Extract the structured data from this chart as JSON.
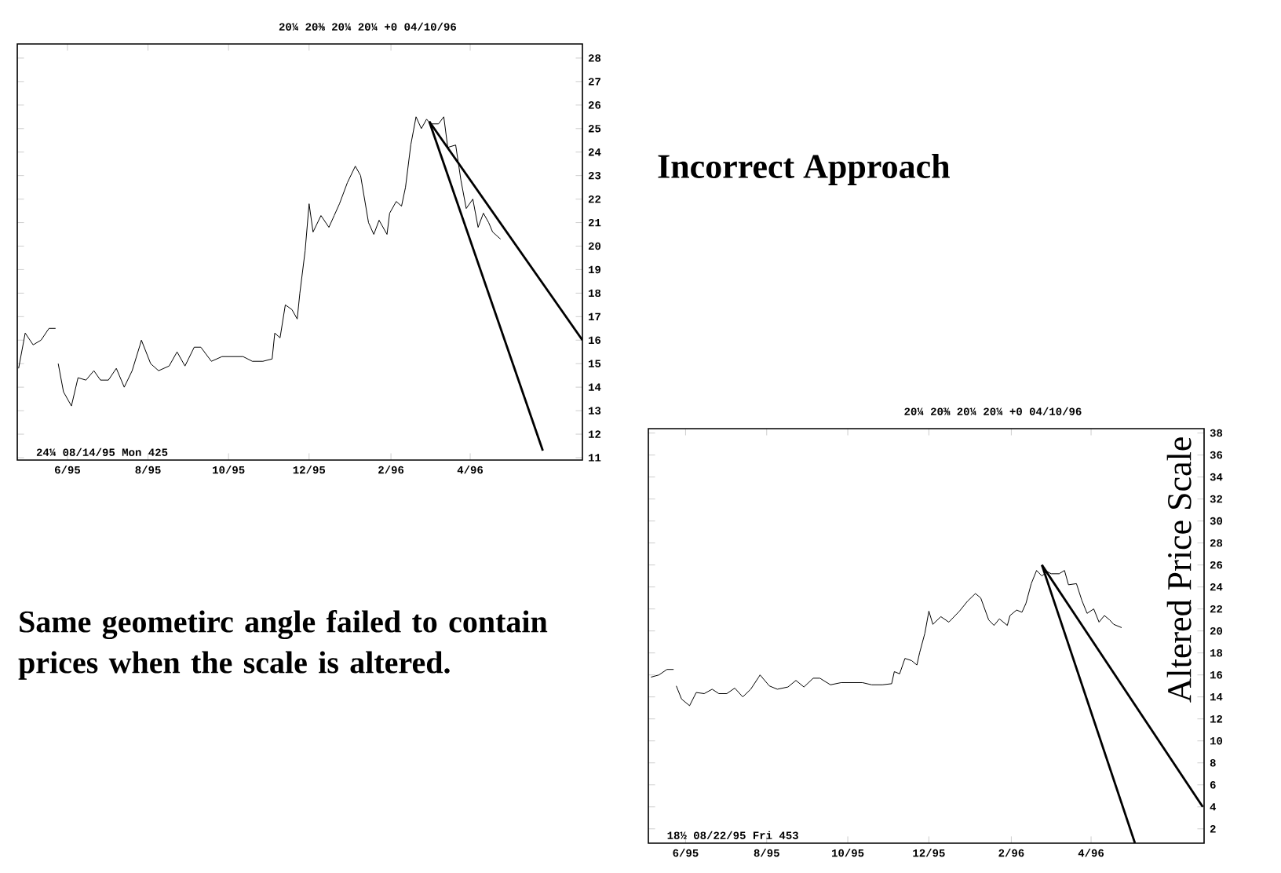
{
  "chart_data": [
    {
      "type": "line",
      "subtitle": "20¼   20⅜   20¼   20¼   +0   04/10/96",
      "xlim": [
        "1995-04-24",
        "1996-06-25"
      ],
      "ylim": [
        10.9,
        28.6
      ],
      "xticks": [
        {
          "value": "1995-06",
          "label": "6/95"
        },
        {
          "value": "1995-08",
          "label": "8/95"
        },
        {
          "value": "1995-10",
          "label": "10/95"
        },
        {
          "value": "1995-12",
          "label": "12/95"
        },
        {
          "value": "1996-02",
          "label": "2/96"
        },
        {
          "value": "1996-04",
          "label": "4/96"
        }
      ],
      "yticks": [
        11,
        12,
        13,
        14,
        15,
        16,
        17,
        18,
        19,
        20,
        21,
        22,
        23,
        24,
        25,
        26,
        27,
        28
      ],
      "annotations": [
        "24¼ 08/14/95 Mon 425",
        "Incorrect Approach"
      ],
      "series": [
        {
          "color": "#000000",
          "x": [
            "1995-04-25",
            "1995-04-30",
            "1995-05-06",
            "1995-05-12",
            "1995-05-18",
            "1995-05-23",
            "1995-05-24",
            "1995-05-25",
            "1995-05-29",
            "1995-06-04",
            "1995-06-09",
            "1995-06-15",
            "1995-06-21",
            "1995-06-26",
            "1995-07-02",
            "1995-07-08",
            "1995-07-14",
            "1995-07-20",
            "1995-07-26",
            "1995-07-27",
            "1995-08-03",
            "1995-08-09",
            "1995-08-17",
            "1995-08-23",
            "1995-08-29",
            "1995-09-05",
            "1995-09-10",
            "1995-09-18",
            "1995-09-26",
            "1995-10-04",
            "1995-10-12",
            "1995-10-19",
            "1995-10-27",
            "1995-11-03",
            "1995-11-05",
            "1995-11-09",
            "1995-11-13",
            "1995-11-18",
            "1995-11-22",
            "1995-11-24",
            "1995-11-28",
            "1995-12-01",
            "1995-12-04",
            "1995-12-10",
            "1995-12-16",
            "1995-12-20",
            "1995-12-24",
            "1995-12-30",
            "1996-01-05",
            "1996-01-09",
            "1996-01-15",
            "1996-01-19",
            "1996-01-23",
            "1996-01-29",
            "1996-01-31",
            "1996-02-05",
            "1996-02-09",
            "1996-02-12",
            "1996-02-16",
            "1996-02-20",
            "1996-02-24",
            "1996-02-28",
            "1996-03-02",
            "1996-03-08",
            "1996-03-12",
            "1996-03-15",
            "1996-03-21",
            "1996-03-25",
            "1996-03-29",
            "1996-04-03",
            "1996-04-07",
            "1996-04-11",
            "1996-04-15",
            "1996-04-18",
            "1996-04-24"
          ],
          "values": [
            14.8,
            16.3,
            15.8,
            16,
            16.5,
            16.5,
            null,
            15,
            13.8,
            13.2,
            14.4,
            14.3,
            14.7,
            14.3,
            14.3,
            14.8,
            14,
            14.7,
            15.8,
            16,
            15,
            14.7,
            14.9,
            15.5,
            14.9,
            15.7,
            15.7,
            15.1,
            15.3,
            15.3,
            15.3,
            15.1,
            15.1,
            15.2,
            16.3,
            16.1,
            17.5,
            17.3,
            16.9,
            18,
            19.8,
            21.8,
            20.6,
            21.3,
            20.8,
            21.3,
            21.8,
            22.7,
            23.4,
            23,
            21,
            20.5,
            21.1,
            20.5,
            21.4,
            21.9,
            21.7,
            22.5,
            24.3,
            25.5,
            25,
            25.4,
            25.2,
            25.2,
            25.5,
            24.2,
            24.3,
            22.8,
            21.6,
            22,
            20.8,
            21.4,
            21,
            20.6,
            20.3
          ]
        },
        {
          "color": "#000000",
          "x": [
            "1996-03-01",
            "1996-05-26"
          ],
          "values": [
            25.3,
            11.3
          ]
        },
        {
          "color": "#000000",
          "x": [
            "1996-03-01",
            "1996-06-25"
          ],
          "values": [
            25.3,
            16
          ]
        }
      ]
    },
    {
      "type": "line",
      "subtitle": "20¼   20⅜   20¼   20¼   +0   04/10/96",
      "ylabel": "Altered Price Scale",
      "xlim": [
        "1995-05-04",
        "1996-06-25"
      ],
      "ylim": [
        0.7,
        38.4
      ],
      "xticks": [
        {
          "value": "1995-06",
          "label": "6/95"
        },
        {
          "value": "1995-08",
          "label": "8/95"
        },
        {
          "value": "1995-10",
          "label": "10/95"
        },
        {
          "value": "1995-12",
          "label": "12/95"
        },
        {
          "value": "1996-02",
          "label": "2/96"
        },
        {
          "value": "1996-04",
          "label": "4/96"
        }
      ],
      "yticks": [
        2,
        4,
        6,
        8,
        10,
        12,
        14,
        16,
        18,
        20,
        22,
        24,
        26,
        28,
        30,
        32,
        34,
        36,
        38
      ],
      "annotations": [
        "18½ 08/22/95 Fri 453",
        "Same geometirc angle failed to contain prices when the scale is altered."
      ],
      "series": [
        {
          "color": "#000000",
          "x": [
            "1995-05-06",
            "1995-05-12",
            "1995-05-18",
            "1995-05-23",
            "1995-05-24",
            "1995-05-25",
            "1995-05-29",
            "1995-06-04",
            "1995-06-09",
            "1995-06-15",
            "1995-06-21",
            "1995-06-26",
            "1995-07-02",
            "1995-07-08",
            "1995-07-14",
            "1995-07-20",
            "1995-07-26",
            "1995-07-27",
            "1995-08-03",
            "1995-08-09",
            "1995-08-17",
            "1995-08-23",
            "1995-08-29",
            "1995-09-05",
            "1995-09-10",
            "1995-09-18",
            "1995-09-26",
            "1995-10-04",
            "1995-10-12",
            "1995-10-19",
            "1995-10-27",
            "1995-11-03",
            "1995-11-05",
            "1995-11-09",
            "1995-11-13",
            "1995-11-18",
            "1995-11-22",
            "1995-11-24",
            "1995-11-28",
            "1995-12-01",
            "1995-12-04",
            "1995-12-10",
            "1995-12-16",
            "1995-12-20",
            "1995-12-24",
            "1995-12-30",
            "1996-01-05",
            "1996-01-09",
            "1996-01-15",
            "1996-01-19",
            "1996-01-23",
            "1996-01-29",
            "1996-01-31",
            "1996-02-05",
            "1996-02-09",
            "1996-02-12",
            "1996-02-16",
            "1996-02-20",
            "1996-02-24",
            "1996-02-28",
            "1996-03-02",
            "1996-03-08",
            "1996-03-12",
            "1996-03-15",
            "1996-03-21",
            "1996-03-25",
            "1996-03-29",
            "1996-04-03",
            "1996-04-07",
            "1996-04-11",
            "1996-04-15",
            "1996-04-18",
            "1996-04-24"
          ],
          "values": [
            15.8,
            16,
            16.5,
            16.5,
            null,
            15,
            13.8,
            13.2,
            14.4,
            14.3,
            14.7,
            14.3,
            14.3,
            14.8,
            14,
            14.7,
            15.8,
            16,
            15,
            14.7,
            14.9,
            15.5,
            14.9,
            15.7,
            15.7,
            15.1,
            15.3,
            15.3,
            15.3,
            15.1,
            15.1,
            15.2,
            16.3,
            16.1,
            17.5,
            17.3,
            16.9,
            18,
            19.8,
            21.8,
            20.6,
            21.3,
            20.8,
            21.3,
            21.8,
            22.7,
            23.4,
            23,
            21,
            20.5,
            21.1,
            20.5,
            21.4,
            21.9,
            21.7,
            22.5,
            24.3,
            25.5,
            25,
            25.4,
            25.2,
            25.2,
            25.5,
            24.2,
            24.3,
            22.8,
            21.6,
            22,
            20.8,
            21.4,
            21,
            20.6,
            20.3
          ]
        },
        {
          "color": "#000000",
          "x": [
            "1996-02-24",
            "1996-05-04"
          ],
          "values": [
            26,
            0.7
          ]
        },
        {
          "color": "#000000",
          "x": [
            "1996-02-24",
            "1996-06-24"
          ],
          "values": [
            26,
            4
          ]
        }
      ]
    }
  ]
}
